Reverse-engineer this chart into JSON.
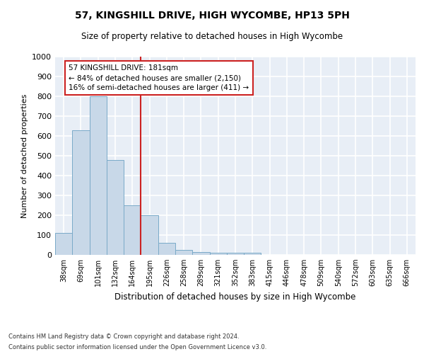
{
  "title_line1": "57, KINGSHILL DRIVE, HIGH WYCOMBE, HP13 5PH",
  "title_line2": "Size of property relative to detached houses in High Wycombe",
  "xlabel": "Distribution of detached houses by size in High Wycombe",
  "ylabel": "Number of detached properties",
  "categories": [
    "38sqm",
    "69sqm",
    "101sqm",
    "132sqm",
    "164sqm",
    "195sqm",
    "226sqm",
    "258sqm",
    "289sqm",
    "321sqm",
    "352sqm",
    "383sqm",
    "415sqm",
    "446sqm",
    "478sqm",
    "509sqm",
    "540sqm",
    "572sqm",
    "603sqm",
    "635sqm",
    "666sqm"
  ],
  "values": [
    110,
    630,
    800,
    480,
    250,
    200,
    60,
    25,
    15,
    10,
    10,
    10,
    0,
    0,
    0,
    0,
    0,
    0,
    0,
    0,
    0
  ],
  "bar_color": "#c8d8e8",
  "bar_edge_color": "#7aaac8",
  "vline_x": 4.5,
  "vline_color": "#cc2222",
  "annotation_text": "57 KINGSHILL DRIVE: 181sqm\n← 84% of detached houses are smaller (2,150)\n16% of semi-detached houses are larger (411) →",
  "annotation_box_color": "#cc2222",
  "ylim": [
    0,
    1000
  ],
  "yticks": [
    0,
    100,
    200,
    300,
    400,
    500,
    600,
    700,
    800,
    900,
    1000
  ],
  "background_color": "#e8eef6",
  "grid_color": "#ffffff",
  "footer_line1": "Contains HM Land Registry data © Crown copyright and database right 2024.",
  "footer_line2": "Contains public sector information licensed under the Open Government Licence v3.0."
}
